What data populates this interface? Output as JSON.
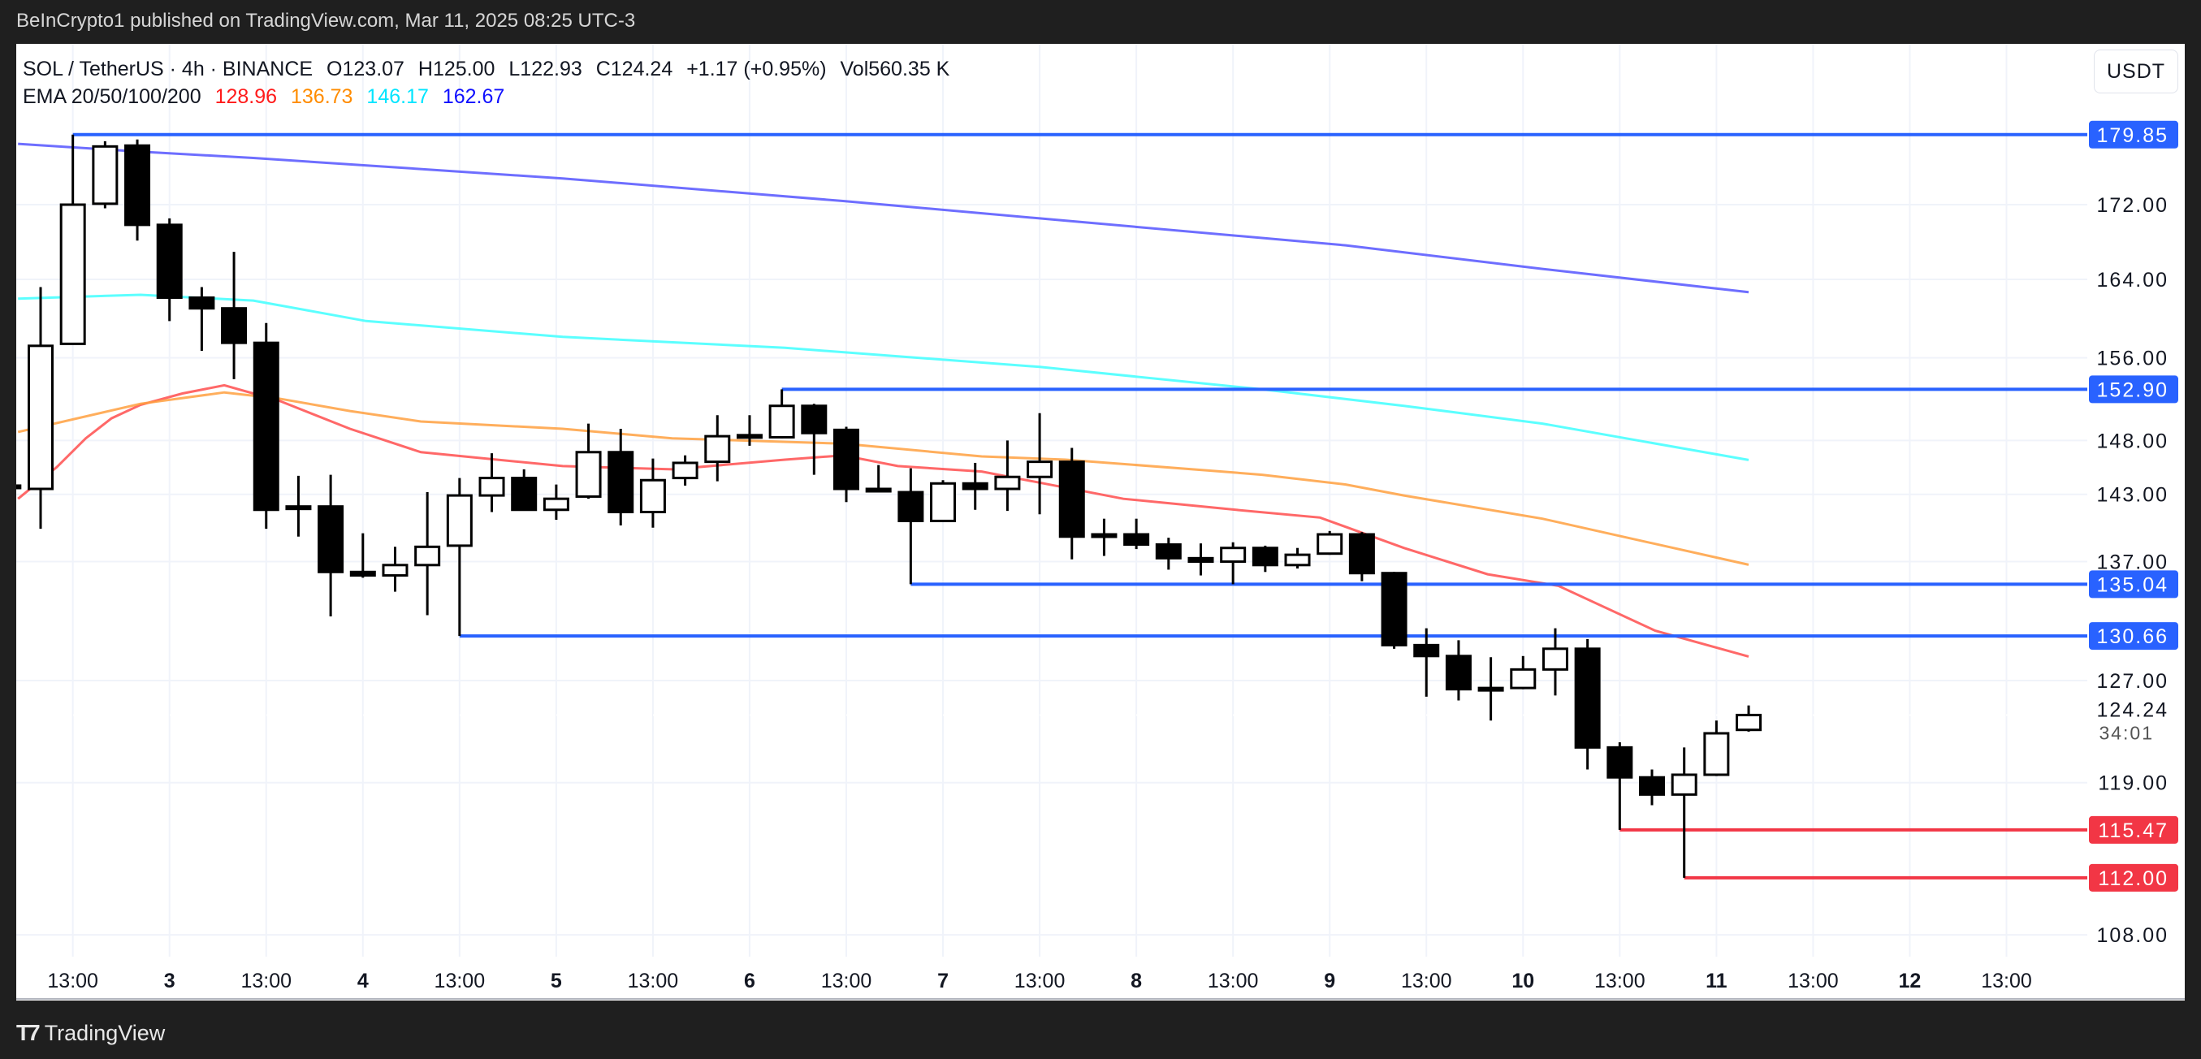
{
  "header": {
    "published": "BeInCrypto1 published on TradingView.com, Mar 11, 2025 08:25 UTC-3"
  },
  "legend": {
    "symbol": "SOL / TetherUS · 4h · BINANCE",
    "open": "O123.07",
    "high": "H125.00",
    "low": "L122.93",
    "close": "C124.24",
    "change": "+1.17 (+0.95%)",
    "volume": "Vol560.35 K",
    "ema_label": "EMA 20/50/100/200",
    "ema_values": [
      {
        "value": "128.96",
        "color": "#ff1a1a"
      },
      {
        "value": "136.73",
        "color": "#ff8c00"
      },
      {
        "value": "146.17",
        "color": "#00e5ff"
      },
      {
        "value": "162.67",
        "color": "#1010ff"
      }
    ]
  },
  "currency_button": "USDT",
  "footer": {
    "brand": "TradingView",
    "logo_icon": "tradingview-logo-icon"
  },
  "chart_data": {
    "type": "candlestick",
    "title": "SOL / TetherUS · 4h · BINANCE",
    "y_scale": "log",
    "ylim": [
      106,
      182
    ],
    "grid": true,
    "y_ticks": [
      "172.00",
      "164.00",
      "156.00",
      "148.00",
      "143.00",
      "137.00",
      "127.00",
      "119.00",
      "108.00"
    ],
    "x_labels": [
      "13:00",
      "3",
      "13:00",
      "4",
      "13:00",
      "5",
      "13:00",
      "6",
      "13:00",
      "7",
      "13:00",
      "8",
      "13:00",
      "9",
      "13:00",
      "10",
      "13:00",
      "11",
      "13:00",
      "12",
      "13:00"
    ],
    "x_label_first_candle": 2,
    "x_label_step_candles": 3,
    "candle_fields": [
      "open",
      "high",
      "low",
      "close"
    ],
    "candles": [
      [
        143.8,
        143.8,
        143.6,
        143.6
      ],
      [
        143.5,
        163.2,
        139.9,
        157.2
      ],
      [
        157.4,
        179.85,
        157.4,
        172.0
      ],
      [
        172.1,
        179.1,
        171.6,
        178.5
      ],
      [
        178.6,
        179.3,
        168.1,
        169.8
      ],
      [
        169.8,
        170.5,
        159.7,
        162.1
      ],
      [
        162.1,
        163.2,
        156.7,
        161.0
      ],
      [
        161.0,
        166.9,
        153.9,
        157.5
      ],
      [
        157.5,
        159.5,
        139.9,
        141.6
      ],
      [
        141.7,
        144.7,
        139.2,
        141.9
      ],
      [
        141.9,
        144.8,
        132.3,
        136.1
      ],
      [
        136.1,
        139.5,
        135.6,
        135.8
      ],
      [
        135.8,
        138.3,
        134.4,
        136.7
      ],
      [
        136.7,
        143.2,
        132.4,
        138.3
      ],
      [
        138.4,
        144.5,
        130.66,
        142.9
      ],
      [
        142.9,
        146.8,
        141.4,
        144.5
      ],
      [
        144.5,
        145.3,
        141.6,
        141.6
      ],
      [
        141.6,
        143.9,
        140.7,
        142.6
      ],
      [
        142.8,
        149.6,
        142.6,
        146.9
      ],
      [
        146.9,
        149.1,
        140.2,
        141.4
      ],
      [
        141.4,
        146.3,
        140.0,
        144.3
      ],
      [
        144.5,
        146.6,
        143.8,
        145.9
      ],
      [
        146.0,
        150.4,
        144.2,
        148.4
      ],
      [
        148.4,
        150.4,
        147.5,
        148.5
      ],
      [
        148.3,
        152.9,
        148.2,
        151.3
      ],
      [
        151.3,
        151.5,
        144.8,
        148.7
      ],
      [
        149.0,
        149.3,
        142.3,
        143.5
      ],
      [
        143.5,
        145.7,
        143.2,
        143.3
      ],
      [
        143.2,
        145.4,
        135.04,
        140.6
      ],
      [
        140.6,
        144.3,
        140.5,
        144.0
      ],
      [
        144.0,
        145.9,
        141.6,
        143.5
      ],
      [
        143.5,
        148.0,
        141.5,
        144.6
      ],
      [
        144.6,
        150.6,
        141.2,
        146.0
      ],
      [
        146.0,
        147.3,
        137.2,
        139.2
      ],
      [
        139.2,
        140.8,
        137.5,
        139.4
      ],
      [
        139.4,
        140.8,
        138.1,
        138.5
      ],
      [
        138.5,
        139.1,
        136.3,
        137.3
      ],
      [
        137.3,
        138.6,
        135.8,
        137.0
      ],
      [
        137.0,
        138.7,
        135.04,
        138.2
      ],
      [
        138.2,
        138.4,
        136.1,
        136.7
      ],
      [
        136.7,
        138.2,
        136.4,
        137.6
      ],
      [
        137.7,
        139.7,
        137.6,
        139.4
      ],
      [
        139.4,
        139.6,
        135.3,
        136.0
      ],
      [
        136.0,
        136.1,
        129.6,
        129.9
      ],
      [
        129.9,
        131.3,
        125.7,
        129.0
      ],
      [
        129.0,
        130.3,
        125.4,
        126.3
      ],
      [
        126.4,
        128.9,
        123.8,
        126.3
      ],
      [
        126.4,
        129.0,
        126.3,
        127.9
      ],
      [
        127.9,
        131.3,
        125.8,
        129.6
      ],
      [
        129.6,
        130.4,
        120.0,
        121.7
      ],
      [
        121.7,
        122.1,
        115.47,
        119.4
      ],
      [
        119.4,
        120.0,
        117.3,
        118.1
      ],
      [
        118.1,
        121.7,
        112.0,
        119.6
      ],
      [
        119.6,
        123.8,
        119.5,
        122.8
      ],
      [
        123.07,
        125.0,
        122.93,
        124.24
      ]
    ],
    "ema_series": [
      {
        "name": "EMA 20",
        "color": "#ff4d4d",
        "points": [
          [
            0.3,
            142.6
          ],
          [
            1.5,
            145.5
          ],
          [
            2.4,
            148.2
          ],
          [
            3.2,
            150.1
          ],
          [
            4.1,
            151.4
          ],
          [
            5.4,
            152.5
          ],
          [
            6.7,
            153.3
          ],
          [
            8.4,
            151.8
          ],
          [
            10.6,
            149.1
          ],
          [
            12.8,
            146.9
          ],
          [
            17.2,
            145.6
          ],
          [
            20.6,
            145.3
          ],
          [
            24.1,
            146.2
          ],
          [
            25.9,
            146.6
          ],
          [
            27.6,
            145.6
          ],
          [
            30.2,
            145.1
          ],
          [
            34.6,
            142.6
          ],
          [
            38.1,
            141.6
          ],
          [
            40.7,
            140.9
          ],
          [
            43.3,
            138.2
          ],
          [
            45.9,
            135.9
          ],
          [
            48.1,
            134.9
          ],
          [
            51.1,
            131.1
          ],
          [
            54,
            128.96
          ]
        ]
      },
      {
        "name": "EMA 50",
        "color": "#ffa040",
        "points": [
          [
            0.3,
            148.8
          ],
          [
            4.1,
            151.5
          ],
          [
            6.7,
            152.6
          ],
          [
            8.4,
            152.0
          ],
          [
            10.6,
            150.8
          ],
          [
            12.8,
            149.8
          ],
          [
            17.2,
            149.1
          ],
          [
            20.6,
            148.2
          ],
          [
            25.9,
            147.7
          ],
          [
            30.2,
            146.5
          ],
          [
            32.8,
            146.2
          ],
          [
            37.2,
            145.2
          ],
          [
            38.9,
            144.8
          ],
          [
            41.5,
            143.9
          ],
          [
            43.3,
            142.9
          ],
          [
            47.6,
            140.8
          ],
          [
            54,
            136.73
          ]
        ]
      },
      {
        "name": "EMA 100",
        "color": "#40ffff",
        "points": [
          [
            0.3,
            162.0
          ],
          [
            4.1,
            162.4
          ],
          [
            7.6,
            161.8
          ],
          [
            11.1,
            159.7
          ],
          [
            17.2,
            158.1
          ],
          [
            24.1,
            157.0
          ],
          [
            32,
            155.1
          ],
          [
            38.9,
            152.9
          ],
          [
            43.3,
            151.3
          ],
          [
            47.6,
            149.6
          ],
          [
            54,
            146.17
          ]
        ]
      },
      {
        "name": "EMA 200",
        "color": "#5555ff",
        "points": [
          [
            0.3,
            178.8
          ],
          [
            4.1,
            177.9
          ],
          [
            7.6,
            177.2
          ],
          [
            17.2,
            174.9
          ],
          [
            25.9,
            172.4
          ],
          [
            32,
            170.5
          ],
          [
            41.5,
            167.6
          ],
          [
            47.6,
            165.1
          ],
          [
            54,
            162.67
          ]
        ]
      }
    ],
    "levels": [
      {
        "value": 179.85,
        "label": "179.85",
        "start_candle": 2,
        "color": "#2962ff"
      },
      {
        "value": 152.9,
        "label": "152.90",
        "start_candle": 24,
        "color": "#2962ff"
      },
      {
        "value": 135.04,
        "label": "135.04",
        "start_candle": 28,
        "color": "#2962ff"
      },
      {
        "value": 130.66,
        "label": "130.66",
        "start_candle": 14,
        "color": "#2962ff"
      },
      {
        "value": 115.47,
        "label": "115.47",
        "start_candle": 50,
        "color": "#f23645"
      },
      {
        "value": 112.0,
        "label": "112.00",
        "start_candle": 52,
        "color": "#f23645"
      }
    ],
    "last_price": {
      "value": 124.24,
      "label": "124.24",
      "countdown": "34:01"
    }
  }
}
